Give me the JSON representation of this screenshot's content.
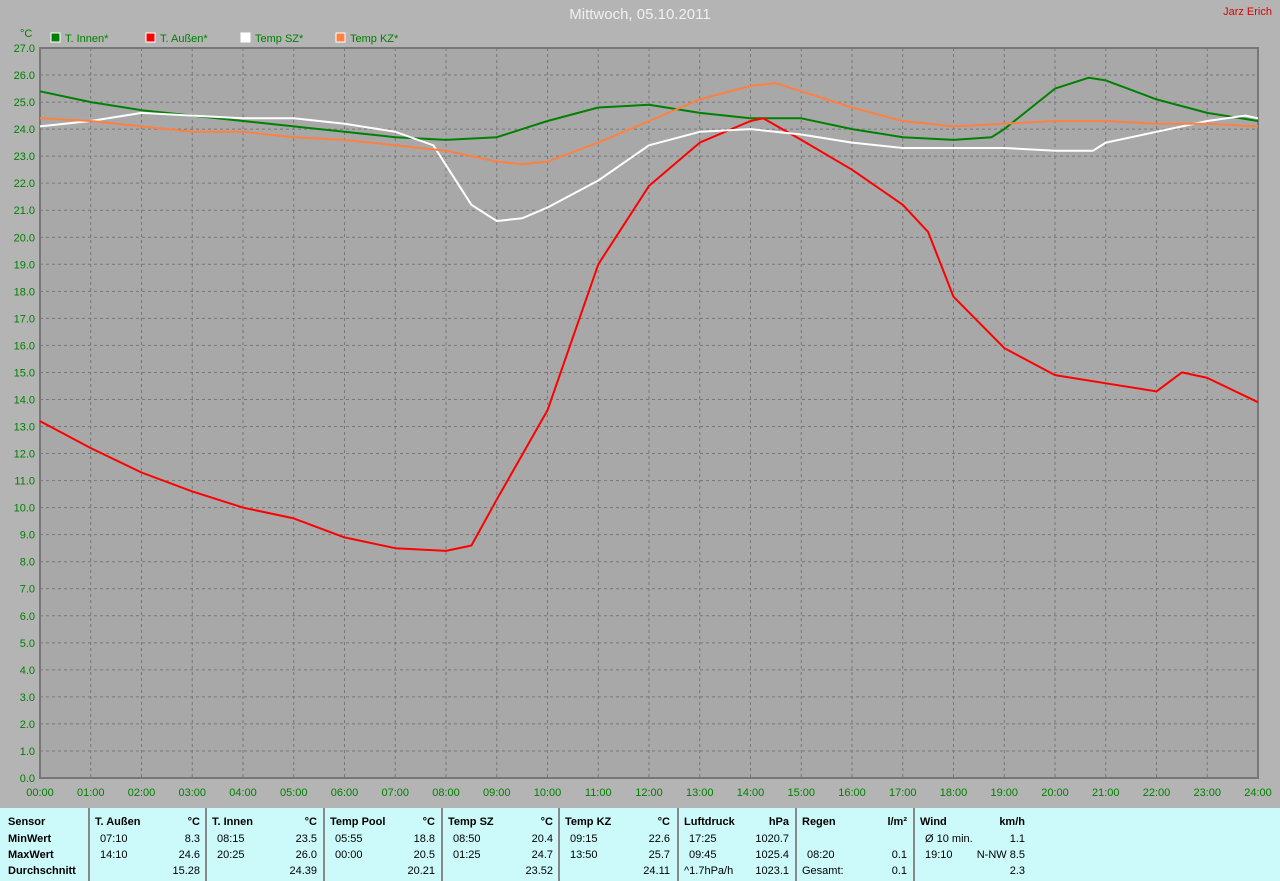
{
  "header": {
    "title": "Mittwoch, 05.10.2011",
    "author": "Jarz Erich"
  },
  "chart_data": {
    "type": "line",
    "title": "Mittwoch, 05.10.2011",
    "ylabel": "°C",
    "ylim": [
      0,
      27
    ],
    "yticks": [
      "0.0",
      "1.0",
      "2.0",
      "3.0",
      "4.0",
      "5.0",
      "6.0",
      "7.0",
      "8.0",
      "9.0",
      "10.0",
      "11.0",
      "12.0",
      "13.0",
      "14.0",
      "15.0",
      "16.0",
      "17.0",
      "18.0",
      "19.0",
      "20.0",
      "21.0",
      "22.0",
      "23.0",
      "24.0",
      "25.0",
      "26.0",
      "27.0"
    ],
    "xticks": [
      "00:00",
      "01:00",
      "02:00",
      "03:00",
      "04:00",
      "05:00",
      "06:00",
      "07:00",
      "08:00",
      "09:00",
      "10:00",
      "11:00",
      "12:00",
      "13:00",
      "14:00",
      "15:00",
      "16:00",
      "17:00",
      "18:00",
      "19:00",
      "20:00",
      "21:00",
      "22:00",
      "23:00",
      "24:00"
    ],
    "grid": true,
    "legend_position": "top-left",
    "series": [
      {
        "name": "T. Innen*",
        "color": "#008000",
        "x": [
          "00:00",
          "01:00",
          "02:00",
          "03:00",
          "04:00",
          "05:00",
          "06:00",
          "07:00",
          "08:00",
          "09:00",
          "10:00",
          "11:00",
          "12:00",
          "13:00",
          "14:00",
          "15:00",
          "16:00",
          "17:00",
          "18:00",
          "18:45",
          "19:00",
          "20:00",
          "20:40",
          "21:00",
          "22:00",
          "23:00",
          "24:00"
        ],
        "y": [
          25.4,
          25.0,
          24.7,
          24.5,
          24.3,
          24.1,
          23.9,
          23.7,
          23.6,
          23.7,
          24.3,
          24.8,
          24.9,
          24.6,
          24.4,
          24.4,
          24.0,
          23.7,
          23.6,
          23.7,
          24.0,
          25.5,
          25.9,
          25.8,
          25.1,
          24.6,
          24.3
        ]
      },
      {
        "name": "T. Außen*",
        "color": "#ff0000",
        "x": [
          "00:00",
          "01:00",
          "02:00",
          "03:00",
          "04:00",
          "05:00",
          "06:00",
          "07:00",
          "08:00",
          "08:30",
          "09:00",
          "10:00",
          "11:00",
          "12:00",
          "13:00",
          "14:00",
          "14:15",
          "15:00",
          "16:00",
          "17:00",
          "17:30",
          "18:00",
          "19:00",
          "20:00",
          "21:00",
          "22:00",
          "22:30",
          "23:00",
          "24:00"
        ],
        "y": [
          13.2,
          12.2,
          11.3,
          10.6,
          10.0,
          9.6,
          8.9,
          8.5,
          8.4,
          8.6,
          10.3,
          13.6,
          19.0,
          21.9,
          23.5,
          24.3,
          24.4,
          23.6,
          22.5,
          21.2,
          20.2,
          17.8,
          15.9,
          14.9,
          14.6,
          14.3,
          15.0,
          14.8,
          13.9
        ]
      },
      {
        "name": "Temp SZ*",
        "color": "#ffffff",
        "x": [
          "00:00",
          "01:00",
          "02:00",
          "03:00",
          "04:00",
          "05:00",
          "06:00",
          "07:00",
          "07:45",
          "08:30",
          "09:00",
          "09:30",
          "10:00",
          "11:00",
          "12:00",
          "13:00",
          "14:00",
          "15:00",
          "16:00",
          "17:00",
          "18:00",
          "19:00",
          "20:00",
          "20:45",
          "21:00",
          "22:00",
          "23:00",
          "23:45",
          "24:00"
        ],
        "y": [
          24.1,
          24.3,
          24.6,
          24.5,
          24.4,
          24.4,
          24.2,
          23.9,
          23.4,
          21.2,
          20.6,
          20.7,
          21.1,
          22.1,
          23.4,
          23.9,
          24.0,
          23.8,
          23.5,
          23.3,
          23.3,
          23.3,
          23.2,
          23.2,
          23.5,
          23.9,
          24.3,
          24.5,
          24.4
        ]
      },
      {
        "name": "Temp KZ*",
        "color": "#ff8040",
        "x": [
          "00:00",
          "01:00",
          "02:00",
          "03:00",
          "04:00",
          "05:00",
          "06:00",
          "07:00",
          "08:00",
          "09:00",
          "09:30",
          "10:00",
          "11:00",
          "12:00",
          "13:00",
          "14:00",
          "14:30",
          "15:00",
          "16:00",
          "17:00",
          "18:00",
          "19:00",
          "20:00",
          "21:00",
          "22:00",
          "23:00",
          "24:00"
        ],
        "y": [
          24.4,
          24.3,
          24.1,
          23.9,
          23.9,
          23.7,
          23.6,
          23.4,
          23.2,
          22.8,
          22.7,
          22.8,
          23.5,
          24.3,
          25.1,
          25.6,
          25.7,
          25.4,
          24.8,
          24.3,
          24.1,
          24.2,
          24.3,
          24.3,
          24.2,
          24.2,
          24.1
        ]
      }
    ]
  },
  "table": {
    "row_labels": [
      "Sensor",
      "MinWert",
      "MaxWert",
      "Durchschnitt"
    ],
    "columns": [
      {
        "name": "T. Außen",
        "unit": "°C",
        "min_time": "07:10",
        "min": "8.3",
        "max_time": "14:10",
        "max": "24.6",
        "avg_label": "",
        "avg": "15.28"
      },
      {
        "name": "T. Innen",
        "unit": "°C",
        "min_time": "08:15",
        "min": "23.5",
        "max_time": "20:25",
        "max": "26.0",
        "avg_label": "",
        "avg": "24.39"
      },
      {
        "name": "Temp Pool",
        "unit": "°C",
        "min_time": "05:55",
        "min": "18.8",
        "max_time": "00:00",
        "max": "20.5",
        "avg_label": "",
        "avg": "20.21"
      },
      {
        "name": "Temp SZ",
        "unit": "°C",
        "min_time": "08:50",
        "min": "20.4",
        "max_time": "01:25",
        "max": "24.7",
        "avg_label": "",
        "avg": "23.52"
      },
      {
        "name": "Temp KZ",
        "unit": "°C",
        "min_time": "09:15",
        "min": "22.6",
        "max_time": "13:50",
        "max": "25.7",
        "avg_label": "",
        "avg": "24.11"
      },
      {
        "name": "Luftdruck",
        "unit": "hPa",
        "min_time": "17:25",
        "min": "1020.7",
        "max_time": "09:45",
        "max": "1025.4",
        "avg_label": "^1.7hPa/h",
        "avg": "1023.1"
      },
      {
        "name": "Regen",
        "unit": "l/m²",
        "min_time": "",
        "min": "",
        "max_time": "08:20",
        "max": "0.1",
        "avg_label": "Gesamt:",
        "avg": "0.1"
      },
      {
        "name": "Wind",
        "unit": "km/h",
        "min_time": "Ø 10 min.",
        "min": "1.1",
        "max_time": "19:10",
        "max": "N-NW 8.5",
        "avg_label": "",
        "avg": "2.3"
      }
    ]
  }
}
